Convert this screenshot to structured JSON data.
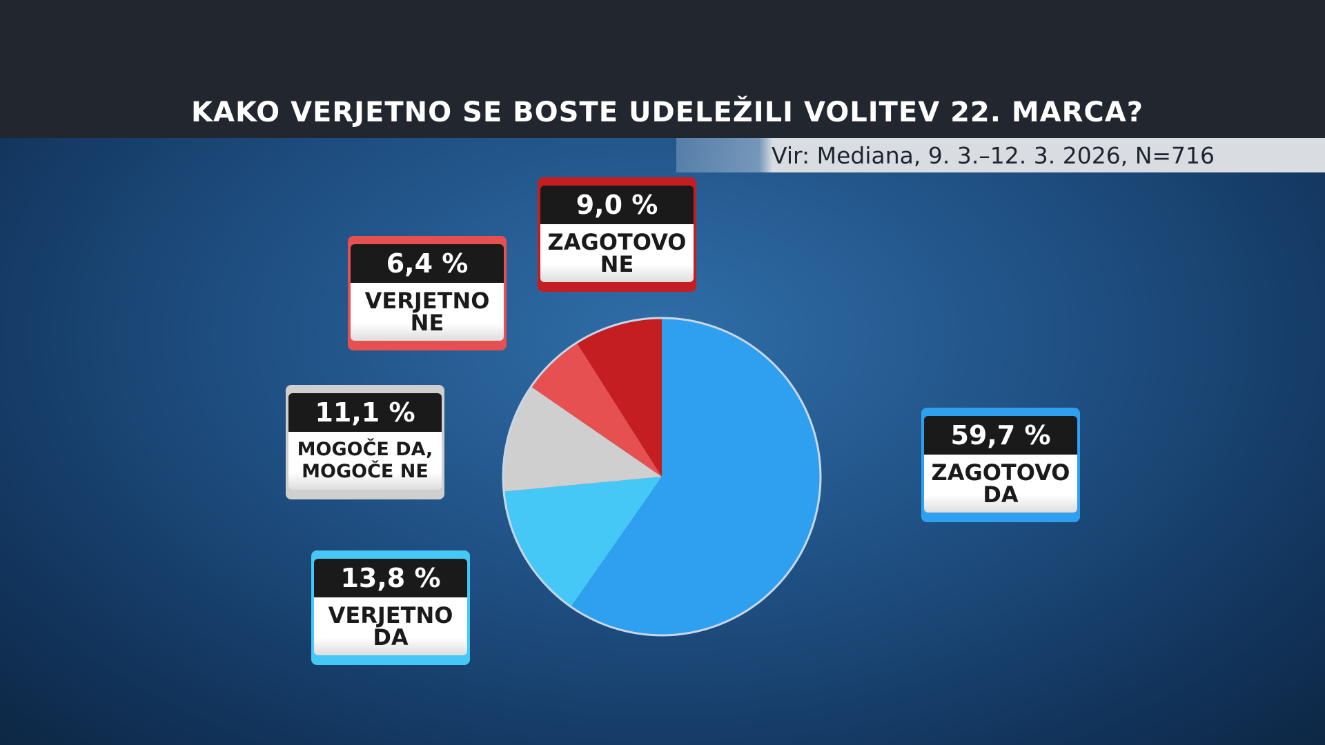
{
  "chart_data": {
    "type": "pie",
    "title": "KAKO VERJETNO SE BOSTE UDELEŽILI VOLITEV 22. MARCA?",
    "subtitle": "Vir: Mediana, 9. 3.–12. 3. 2026, N=716",
    "categories": [
      "ZAGOTOVO DA",
      "VERJETNO DA",
      "MOGOČE DA, MOGOČE NE",
      "VERJETNO NE",
      "ZAGOTOVO NE"
    ],
    "values": [
      59.7,
      13.8,
      11.1,
      6.4,
      9.0
    ],
    "value_labels": [
      "59,7 %",
      "13,8 %",
      "11,1 %",
      "6,4 %",
      "9,0 %"
    ],
    "colors": [
      "#2f9ff0",
      "#45c8f5",
      "#cfcfcf",
      "#e65050",
      "#c41e22"
    ]
  }
}
